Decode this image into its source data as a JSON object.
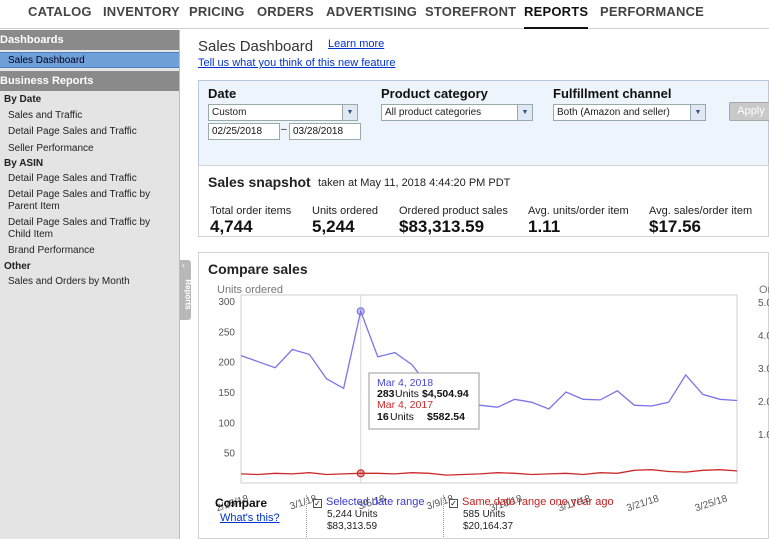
{
  "nav": {
    "items": [
      "CATALOG",
      "INVENTORY",
      "PRICING",
      "ORDERS",
      "ADVERTISING",
      "STOREFRONT",
      "REPORTS",
      "PERFORMANCE"
    ],
    "active": "REPORTS"
  },
  "sidebar": {
    "dashboards_head": "Dashboards",
    "sales_dashboard": "Sales Dashboard",
    "business_head": "Business Reports",
    "by_date": "By Date",
    "by_date_items": [
      "Sales and Traffic",
      "Detail Page Sales and Traffic",
      "Seller Performance"
    ],
    "by_asin": "By ASIN",
    "asin_items": [
      "Detail Page Sales and Traffic",
      "Detail Page Sales and Traffic by Parent Item",
      "Detail Page Sales and Traffic by Child Item",
      "Brand Performance"
    ],
    "other": "Other",
    "other_items": [
      "Sales and Orders by Month"
    ],
    "collapse_label": "Reports"
  },
  "main": {
    "title": "Sales Dashboard",
    "learn_more": "Learn more",
    "feedback": "Tell us what you think of this new feature"
  },
  "filters": {
    "date_label": "Date",
    "date_value": "Custom",
    "start_date": "02/25/2018",
    "dash": "–",
    "end_date": "03/28/2018",
    "category_label": "Product category",
    "category_value": "All product categories",
    "channel_label": "Fulfillment channel",
    "channel_value": "Both (Amazon and seller)",
    "apply": "Apply"
  },
  "snapshot": {
    "title": "Sales snapshot",
    "taken": "taken at May 11, 2018 4:44:20 PM PDT",
    "metrics": [
      {
        "label": "Total order items",
        "value": "4,744"
      },
      {
        "label": "Units ordered",
        "value": "5,244"
      },
      {
        "label": "Ordered product sales",
        "value": "$83,313.59"
      },
      {
        "label": "Avg. units/order item",
        "value": "1.11"
      },
      {
        "label": "Avg. sales/order item",
        "value": "$17.56"
      }
    ]
  },
  "compare": {
    "title": "Compare sales",
    "compare_label": "Compare",
    "whats_this": "What's this?",
    "selected": {
      "name": "Selected date range",
      "units": "5,244 Units",
      "sales": "$83,313.59",
      "check": "✓"
    },
    "last_year": {
      "name": "Same date range one year ago",
      "units": "585 Units",
      "sales": "$20,164.37",
      "check": "✓"
    },
    "tooltip": {
      "date1": "Mar 4, 2018",
      "line1_units": "283",
      "line1_units_word": "Units",
      "line1_sales": "$4,504.94",
      "date2": "Mar 4, 2017",
      "line2_units": "16",
      "line2_units_word": "Units",
      "line2_sales": "$582.54"
    }
  },
  "chart_data": {
    "type": "line",
    "ylabel": "Units ordered",
    "ylabel_right": "Or",
    "ylim": [
      0,
      300
    ],
    "y_ticks": [
      50,
      100,
      150,
      200,
      250,
      300
    ],
    "right_ticks": [
      "5.0",
      "4.0",
      "3.0",
      "2.0",
      "1.0"
    ],
    "x_tick_labels": [
      "2/25/18",
      "3/1/18",
      "3/5/18",
      "3/9/18",
      "3/13/18",
      "3/17/18",
      "3/21/18",
      "3/25/18"
    ],
    "x_start": "2018-02-25",
    "series": [
      {
        "name": "Selected date range",
        "color": "#7b74e8",
        "values": [
          210,
          200,
          190,
          220,
          212,
          172,
          156,
          283,
          208,
          215,
          195,
          158,
          149,
          132,
          128,
          125,
          138,
          133,
          122,
          150,
          138,
          137,
          152,
          128,
          127,
          133,
          178,
          146,
          138,
          136
        ]
      },
      {
        "name": "Same date range one year ago",
        "color": "#cc2a2a",
        "values": [
          15,
          14,
          16,
          15,
          17,
          14,
          15,
          16,
          16,
          15,
          17,
          16,
          13,
          14,
          15,
          17,
          16,
          14,
          15,
          16,
          14,
          17,
          16,
          21,
          22,
          19,
          18,
          21,
          22,
          20
        ]
      }
    ],
    "highlight_index": 7
  }
}
